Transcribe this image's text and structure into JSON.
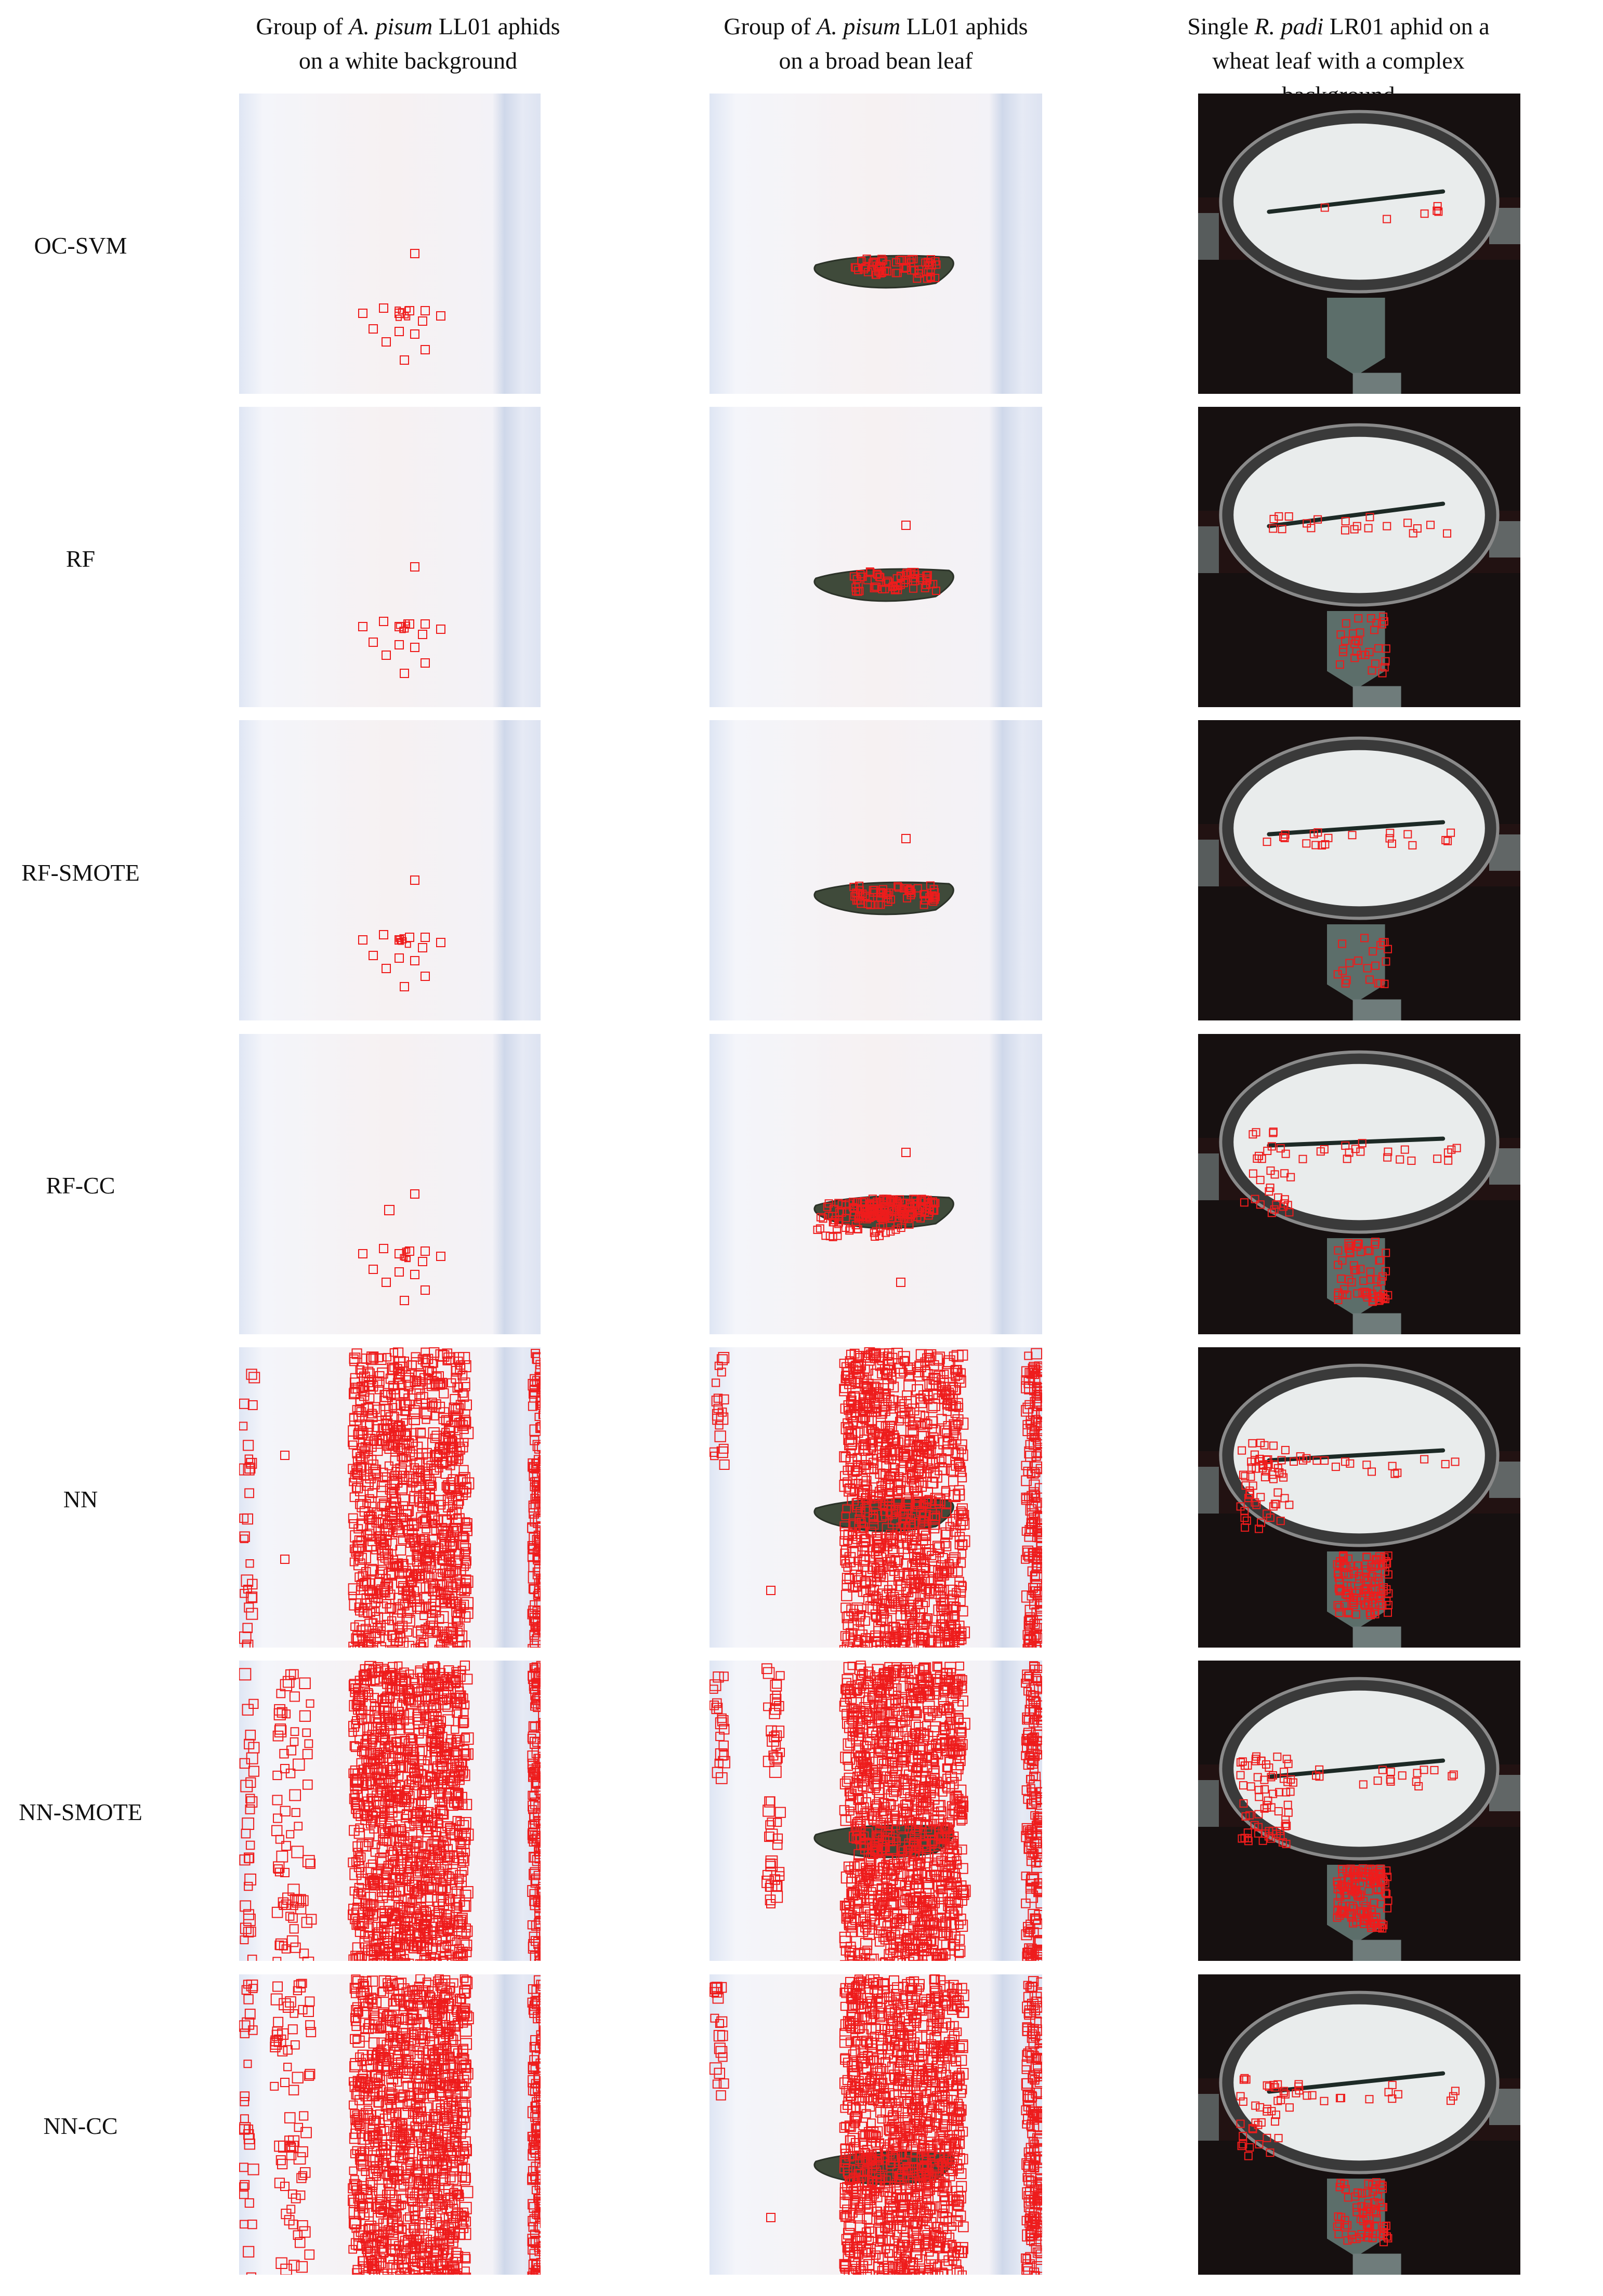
{
  "columns": [
    {
      "pre": "Group of ",
      "species": "A. pisum",
      "post": " LL01 aphids",
      "line2": "on a white background"
    },
    {
      "pre": "Group of ",
      "species": "A. pisum",
      "post": " LL01 aphids",
      "line2": "on a broad bean leaf"
    },
    {
      "pre": "Single ",
      "species": "R. padi",
      "post": " LR01 aphid on a",
      "line2": "wheat leaf with a complex background"
    }
  ],
  "rows": [
    "OC-SVM",
    "RF",
    "RF-SMOTE",
    "RF-CC",
    "NN",
    "NN-SMOTE",
    "NN-CC"
  ],
  "colors": {
    "detection_box": "#ee1c1c",
    "leaf": "#3f4a3a",
    "dark_bg": "#161010"
  }
}
